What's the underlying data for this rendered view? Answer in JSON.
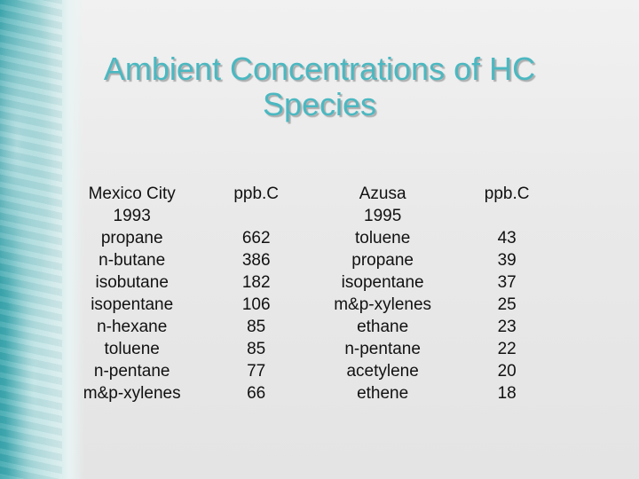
{
  "slide": {
    "title_line1": "Ambient Concentrations of HC",
    "title_line2": "Species",
    "accent_color": "#4bb8c1"
  },
  "table": {
    "headers": {
      "site1_line1": "Mexico City",
      "site1_line2": "1993",
      "unit1": "ppb.C",
      "site2_line1": "Azusa",
      "site2_line2": "1995",
      "unit2": "ppb.C"
    },
    "mexico_city": {
      "species": [
        "propane",
        "n-butane",
        "isobutane",
        "isopentane",
        "n-hexane",
        "toluene",
        "n-pentane",
        "m&p-xylenes"
      ],
      "values": [
        "662",
        "386",
        "182",
        "106",
        "85",
        "85",
        "77",
        "66"
      ]
    },
    "azusa": {
      "species": [
        "toluene",
        "propane",
        "isopentane",
        "m&p-xylenes",
        "ethane",
        "n-pentane",
        "acetylene",
        "ethene"
      ],
      "values": [
        "43",
        "39",
        "37",
        "25",
        "23",
        "22",
        "20",
        "18"
      ]
    }
  }
}
